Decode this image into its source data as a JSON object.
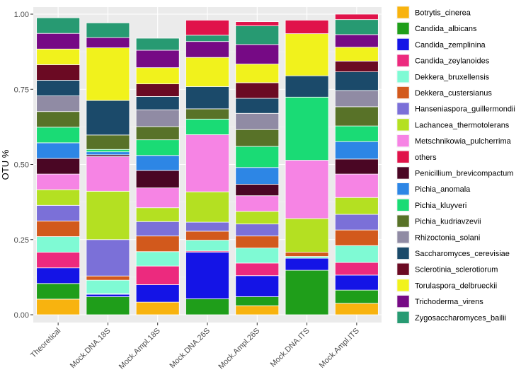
{
  "chart_data": {
    "type": "bar",
    "stacked": true,
    "xlabel": "",
    "ylabel": "OTU %",
    "ylim": [
      0,
      1
    ],
    "yticks": [
      0.0,
      0.25,
      0.5,
      0.75,
      1.0
    ],
    "ytick_labels": [
      "0.00",
      "0.25",
      "0.50",
      "0.75",
      "1.00"
    ],
    "grid": true,
    "legend_position": "right",
    "categories": [
      "Theoretical",
      "Mock.DNA.18S",
      "Mock.Ampl.18S",
      "Mock.DNA.26S",
      "Mock.Ampl.26S",
      "Mock.DNA.ITS",
      "Mock.Ampl.ITS"
    ],
    "series": [
      {
        "name": "Botrytis_cinerea",
        "color": "#F8B30F",
        "values": [
          0.052,
          0.0,
          0.042,
          0.0,
          0.03,
          0.0,
          0.038
        ]
      },
      {
        "name": "Candida_albicans",
        "color": "#1F9E1A",
        "values": [
          0.052,
          0.06,
          0.0,
          0.053,
          0.03,
          0.148,
          0.044
        ]
      },
      {
        "name": "Candida_zemplinina",
        "color": "#1414E6",
        "values": [
          0.052,
          0.008,
          0.058,
          0.155,
          0.07,
          0.04,
          0.05
        ]
      },
      {
        "name": "Candida_zeylanoides",
        "color": "#EC2A7E",
        "values": [
          0.052,
          0.002,
          0.062,
          0.004,
          0.042,
          0.0,
          0.042
        ]
      },
      {
        "name": "Dekkera_bruxellensis",
        "color": "#7FFAD4",
        "values": [
          0.052,
          0.045,
          0.048,
          0.036,
          0.05,
          0.006,
          0.056
        ]
      },
      {
        "name": "Dekkera_custersianus",
        "color": "#D2591C",
        "values": [
          0.052,
          0.014,
          0.052,
          0.03,
          0.04,
          0.014,
          0.052
        ]
      },
      {
        "name": "Hanseniaspora_guillermondii",
        "color": "#7B70D8",
        "values": [
          0.052,
          0.121,
          0.048,
          0.03,
          0.04,
          0.0,
          0.052
        ]
      },
      {
        "name": "Lachancea_thermotolerans",
        "color": "#B4E022",
        "values": [
          0.052,
          0.161,
          0.046,
          0.101,
          0.042,
          0.112,
          0.056
        ]
      },
      {
        "name": "Metschnikowia_pulcherrima",
        "color": "#F684E4",
        "values": [
          0.052,
          0.115,
          0.066,
          0.19,
          0.052,
          0.194,
          0.078
        ]
      },
      {
        "name": "others",
        "color": "#E0134A",
        "values": [
          0.0,
          0.0,
          0.0,
          0.0,
          0.0,
          0.0,
          0.0
        ]
      },
      {
        "name": "Penicillium_brevicompactum",
        "color": "#4A0624",
        "values": [
          0.052,
          0.006,
          0.058,
          0.0,
          0.038,
          0.0,
          0.05
        ]
      },
      {
        "name": "Pichia_anomala",
        "color": "#2D86E5",
        "values": [
          0.052,
          0.01,
          0.05,
          0.0,
          0.056,
          0.0,
          0.058
        ]
      },
      {
        "name": "Pichia_kluyveri",
        "color": "#1ADB75",
        "values": [
          0.052,
          0.008,
          0.052,
          0.052,
          0.07,
          0.21,
          0.052
        ]
      },
      {
        "name": "Pichia_kudriavzevii",
        "color": "#587228",
        "values": [
          0.052,
          0.048,
          0.044,
          0.034,
          0.056,
          0.0,
          0.064
        ]
      },
      {
        "name": "Rhizoctonia_solani",
        "color": "#908BA4",
        "values": [
          0.052,
          0.0,
          0.056,
          0.0,
          0.054,
          0.0,
          0.054
        ]
      },
      {
        "name": "Saccharomyces_cerevisiae",
        "color": "#1B4A6A",
        "values": [
          0.052,
          0.115,
          0.044,
          0.074,
          0.05,
          0.071,
          0.062
        ]
      },
      {
        "name": "Sclerotinia_sclerotiorum",
        "color": "#6B0A23",
        "values": [
          0.052,
          0.0,
          0.042,
          0.0,
          0.052,
          0.0,
          0.036
        ]
      },
      {
        "name": "Torulaspora_delbrueckii",
        "color": "#F1F21C",
        "values": [
          0.052,
          0.175,
          0.054,
          0.097,
          0.062,
          0.14,
          0.046
        ]
      },
      {
        "name": "Trichoderma_virens",
        "color": "#760A85",
        "values": [
          0.052,
          0.034,
          0.058,
          0.053,
          0.065,
          0.0,
          0.042
        ]
      },
      {
        "name": "Zygosaccharomyces_bailii",
        "color": "#279A72",
        "values": [
          0.052,
          0.049,
          0.04,
          0.021,
          0.062,
          0.0,
          0.05
        ]
      }
    ],
    "others_tail": [
      0.0,
      0.0,
      0.0,
      0.05,
      0.014,
      0.045,
      0.018
    ]
  }
}
